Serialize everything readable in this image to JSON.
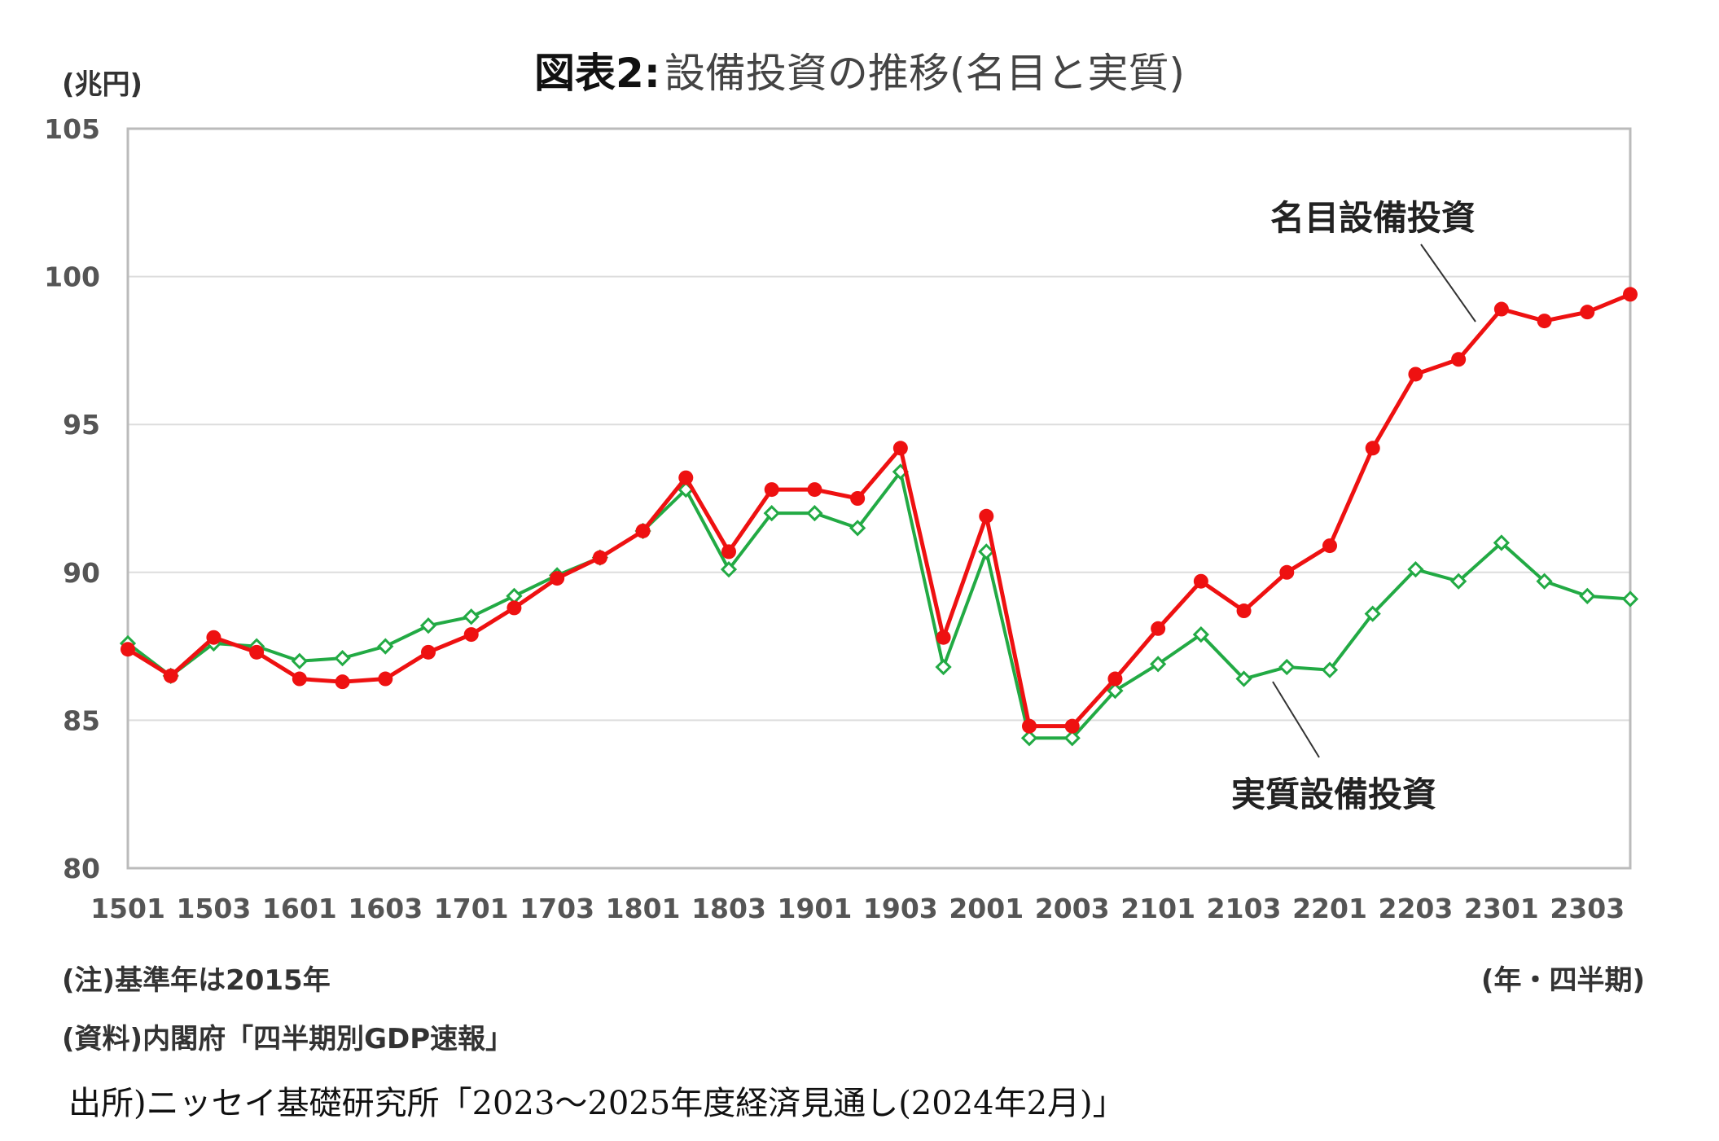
{
  "chart_data": {
    "type": "line",
    "title_prefix": "図表2:",
    "title": "設備投資の推移(名目と実質)",
    "ylabel": "(兆円)",
    "xlabel": "(年・四半期)",
    "ylim": [
      80,
      105
    ],
    "yticks": [
      80,
      85,
      90,
      95,
      100,
      105
    ],
    "x": [
      "1501",
      "1502",
      "1503",
      "1504",
      "1601",
      "1602",
      "1603",
      "1604",
      "1701",
      "1702",
      "1703",
      "1704",
      "1801",
      "1802",
      "1803",
      "1804",
      "1901",
      "1902",
      "1903",
      "1904",
      "2001",
      "2002",
      "2003",
      "2004",
      "2101",
      "2102",
      "2103",
      "2104",
      "2201",
      "2202",
      "2203",
      "2204",
      "2301",
      "2302",
      "2303",
      "2304"
    ],
    "xtick_labels": [
      "1501",
      "1503",
      "1601",
      "1603",
      "1701",
      "1703",
      "1801",
      "1803",
      "1901",
      "1903",
      "2001",
      "2003",
      "2101",
      "2103",
      "2201",
      "2203",
      "2301",
      "2303"
    ],
    "grid": "horizontal",
    "series": [
      {
        "name": "名目設備投資",
        "color": "#ee1111",
        "marker": "filled-circle",
        "values": [
          87.4,
          86.5,
          87.8,
          87.3,
          86.4,
          86.3,
          86.4,
          87.3,
          87.9,
          88.8,
          89.8,
          90.5,
          91.4,
          93.2,
          90.7,
          92.8,
          92.8,
          92.5,
          94.2,
          87.8,
          91.9,
          84.8,
          84.8,
          86.4,
          88.1,
          89.7,
          88.7,
          90.0,
          90.9,
          94.2,
          96.7,
          97.2,
          98.9,
          98.5,
          98.8,
          99.4
        ]
      },
      {
        "name": "実質設備投資",
        "color": "#22aa44",
        "marker": "hollow-diamond",
        "values": [
          87.6,
          86.5,
          87.6,
          87.5,
          87.0,
          87.1,
          87.5,
          88.2,
          88.5,
          89.2,
          89.9,
          90.5,
          91.4,
          92.8,
          90.1,
          92.0,
          92.0,
          91.5,
          93.4,
          86.8,
          90.7,
          84.4,
          84.4,
          86.0,
          86.9,
          87.9,
          86.4,
          86.8,
          86.7,
          88.6,
          90.1,
          89.7,
          91.0,
          89.7,
          89.2,
          89.1
        ]
      }
    ]
  },
  "notes": {
    "base_year": "(注)基準年は2015年",
    "source": "(資料)内閣府「四半期別GDP速報」",
    "origin": "出所)ニッセイ基礎研究所「2023〜2025年度経済見通し(2024年2月)」"
  }
}
